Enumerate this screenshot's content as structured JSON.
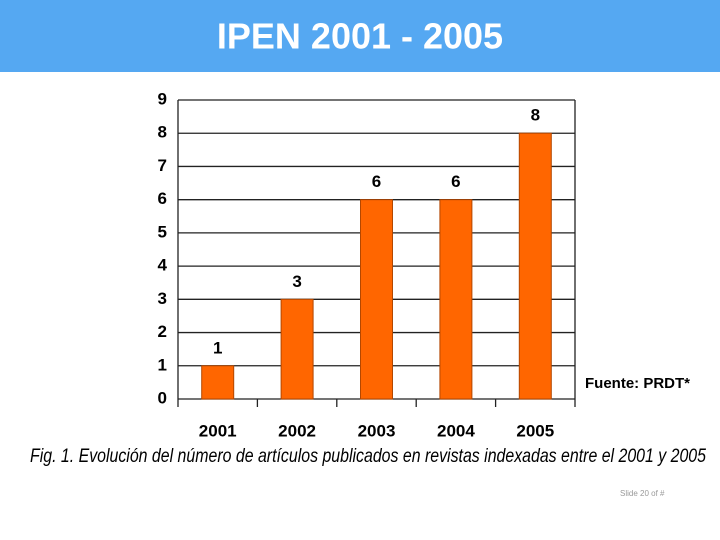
{
  "header": {
    "title": "IPEN 2001 - 2005"
  },
  "chart_data": {
    "type": "bar",
    "categories": [
      "2001",
      "2002",
      "2003",
      "2004",
      "2005"
    ],
    "values": [
      1,
      3,
      6,
      6,
      8
    ],
    "color": "#ff6600",
    "ylim": [
      0,
      9
    ],
    "yticks": [
      0,
      1,
      2,
      3,
      4,
      5,
      6,
      7,
      8,
      9
    ],
    "grid": true,
    "source": "Fuente: PRDT*",
    "caption": "Fig. 1. Evolución del número de artículos publicados en revistas indexadas entre el 2001 y  2005"
  },
  "footer": {
    "slide": "Slide 20 of #"
  }
}
